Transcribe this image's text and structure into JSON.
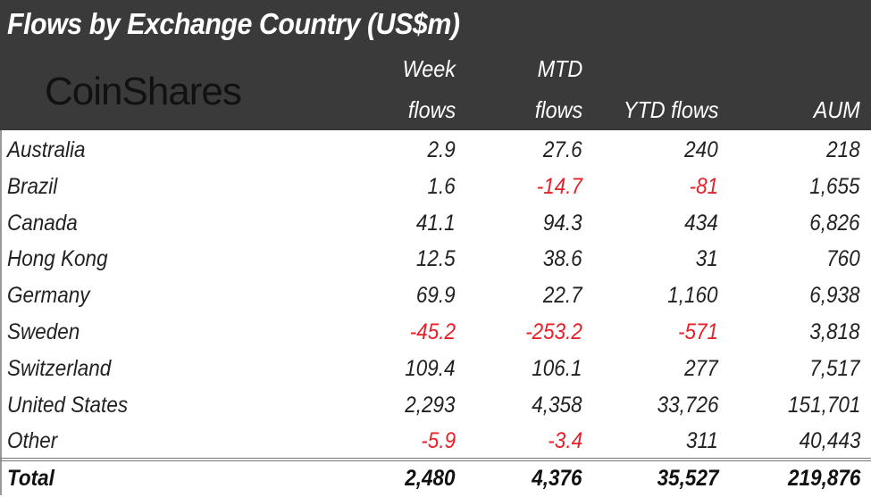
{
  "title": "Flows by Exchange Country (US$m)",
  "logo": "CoinShares",
  "colors": {
    "header_bg": "#3a3a3a",
    "negative": "#e8202a",
    "text": "#222222"
  },
  "chart_data": {
    "type": "table",
    "title": "Flows by Exchange Country (US$m)",
    "columns": [
      {
        "line1": "Week",
        "line2": "flows"
      },
      {
        "line1": "MTD",
        "line2": "flows"
      },
      {
        "line1": "",
        "line2": "YTD flows"
      },
      {
        "line1": "",
        "line2": "AUM"
      }
    ],
    "rows": [
      {
        "label": "Australia",
        "values": [
          "2.9",
          "27.6",
          "240",
          "218"
        ]
      },
      {
        "label": "Brazil",
        "values": [
          "1.6",
          "-14.7",
          "-81",
          "1,655"
        ]
      },
      {
        "label": "Canada",
        "values": [
          "41.1",
          "94.3",
          "434",
          "6,826"
        ]
      },
      {
        "label": "Hong Kong",
        "values": [
          "12.5",
          "38.6",
          "31",
          "760"
        ]
      },
      {
        "label": "Germany",
        "values": [
          "69.9",
          "22.7",
          "1,160",
          "6,938"
        ]
      },
      {
        "label": "Sweden",
        "values": [
          "-45.2",
          "-253.2",
          "-571",
          "3,818"
        ]
      },
      {
        "label": "Switzerland",
        "values": [
          "109.4",
          "106.1",
          "277",
          "7,517"
        ]
      },
      {
        "label": "United States",
        "values": [
          "2,293",
          "4,358",
          "33,726",
          "151,701"
        ]
      },
      {
        "label": "Other",
        "values": [
          "-5.9",
          "-3.4",
          "311",
          "40,443"
        ]
      }
    ],
    "total": {
      "label": "Total",
      "values": [
        "2,480",
        "4,376",
        "35,527",
        "219,876"
      ]
    }
  }
}
